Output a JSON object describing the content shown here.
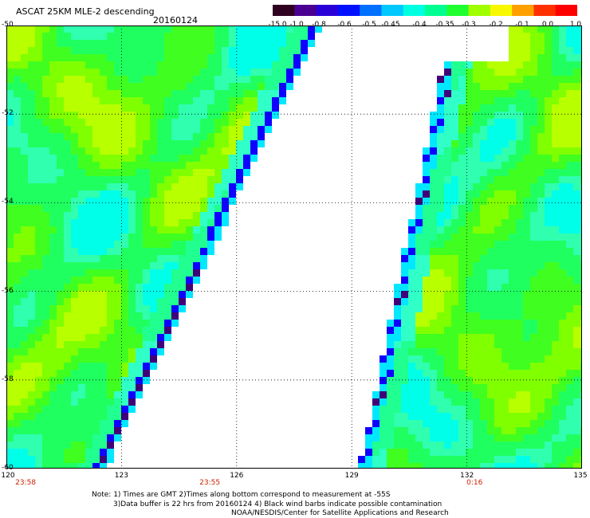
{
  "header": {
    "title": "ASCAT 25KM MLE-2 descending",
    "date": "20160124"
  },
  "colorbar": {
    "labels": [
      "-15.0",
      "-1.0",
      "-0.8",
      "-0.6",
      "-0.5",
      "-0.45",
      "-0.4",
      "-0.35",
      "-0.3",
      "-0.2",
      "-0.1",
      "0.0",
      "1.0"
    ],
    "colors": [
      "#300020",
      "#4a0090",
      "#2a00d8",
      "#0010ff",
      "#0070ff",
      "#00c8ff",
      "#00ffe0",
      "#00ff90",
      "#20ff30",
      "#a0ff00",
      "#f8f800",
      "#ffa000",
      "#ff3000",
      "#ff0000"
    ]
  },
  "map": {
    "lat_labels": [
      "-50",
      "-52",
      "-54",
      "-56",
      "-58",
      "-60"
    ],
    "lon_labels": [
      "120",
      "123",
      "126",
      "129",
      "132",
      "135"
    ],
    "lat_range": [
      -60,
      -50
    ],
    "lon_range": [
      120,
      135
    ],
    "time_labels": [
      {
        "text": "23:58",
        "lon": 120.5
      },
      {
        "text": "23:55",
        "lon": 125.3
      },
      {
        "text": "0:16",
        "lon": 132.2
      }
    ],
    "swaths": [
      {
        "name": "west",
        "lat_edge": [
          [
            -50,
            128.2
          ],
          [
            -60,
            122.6
          ]
        ]
      },
      {
        "name": "east",
        "lat_edge": [
          [
            -50,
            131.6
          ],
          [
            -60,
            129.2
          ]
        ]
      }
    ]
  },
  "notes": {
    "line1": "Note: 1) Times are GMT 2)Times along bottom correspond to measurement at -55S",
    "line2": "3)Data buffer is 22 hrs from 20160124 4) Black wind barbs indicate possible contamination",
    "line3": "NOAA/NESDIS/Center for Satellite Applications and Research"
  }
}
